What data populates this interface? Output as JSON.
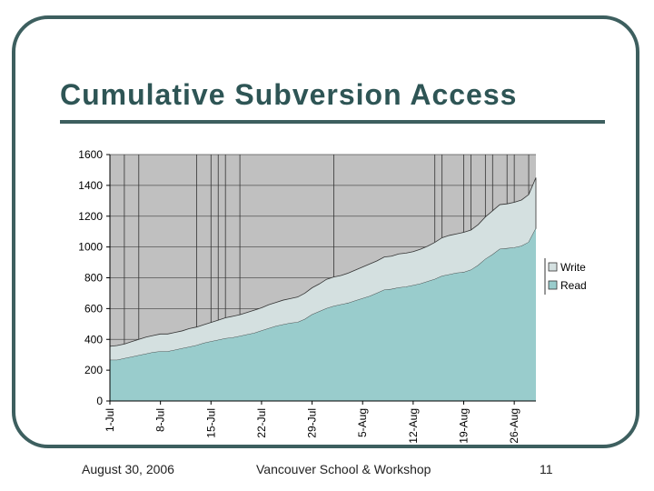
{
  "slide": {
    "title": "Cumulative Subversion Access",
    "footer_date": "August 30, 2006",
    "footer_venue": "Vancouver School & Workshop",
    "page_number": "11"
  },
  "colors": {
    "frame": "#3d5f5f",
    "title": "#2e5555",
    "plot_background": "#c0c0c0",
    "read_fill": "#99cccc",
    "write_fill": "#d4e0e0"
  },
  "chart_data": {
    "type": "area",
    "stacked": true,
    "title": "",
    "xlabel": "",
    "ylabel": "",
    "ylim": [
      0,
      1600
    ],
    "yticks": [
      0,
      200,
      400,
      600,
      800,
      1000,
      1200,
      1400,
      1600
    ],
    "x_tick_labels": [
      "1-Jul",
      "8-Jul",
      "15-Jul",
      "22-Jul",
      "29-Jul",
      "5-Aug",
      "12-Aug",
      "19-Aug",
      "26-Aug"
    ],
    "x": [
      "1-Jul",
      "2-Jul",
      "3-Jul",
      "4-Jul",
      "5-Jul",
      "6-Jul",
      "7-Jul",
      "8-Jul",
      "9-Jul",
      "10-Jul",
      "11-Jul",
      "12-Jul",
      "13-Jul",
      "14-Jul",
      "15-Jul",
      "16-Jul",
      "17-Jul",
      "18-Jul",
      "19-Jul",
      "20-Jul",
      "21-Jul",
      "22-Jul",
      "23-Jul",
      "24-Jul",
      "25-Jul",
      "26-Jul",
      "27-Jul",
      "28-Jul",
      "29-Jul",
      "30-Jul",
      "31-Jul",
      "1-Aug",
      "2-Aug",
      "3-Aug",
      "4-Aug",
      "5-Aug",
      "6-Aug",
      "7-Aug",
      "8-Aug",
      "9-Aug",
      "10-Aug",
      "11-Aug",
      "12-Aug",
      "13-Aug",
      "14-Aug",
      "15-Aug",
      "16-Aug",
      "17-Aug",
      "18-Aug",
      "19-Aug",
      "20-Aug",
      "21-Aug",
      "22-Aug",
      "23-Aug",
      "24-Aug",
      "25-Aug",
      "26-Aug",
      "27-Aug",
      "28-Aug",
      "29-Aug"
    ],
    "series": [
      {
        "name": "Read",
        "values": [
          265,
          265,
          275,
          285,
          295,
          305,
          315,
          320,
          320,
          330,
          340,
          350,
          360,
          375,
          385,
          395,
          405,
          410,
          420,
          430,
          440,
          455,
          470,
          485,
          495,
          505,
          510,
          530,
          560,
          580,
          600,
          615,
          625,
          635,
          650,
          665,
          680,
          700,
          720,
          725,
          735,
          740,
          750,
          760,
          775,
          790,
          810,
          820,
          830,
          835,
          850,
          880,
          920,
          950,
          985,
          990,
          995,
          1005,
          1030,
          1120
        ]
      },
      {
        "name": "Write",
        "values": [
          90,
          95,
          95,
          100,
          105,
          110,
          110,
          115,
          115,
          115,
          115,
          120,
          120,
          120,
          125,
          130,
          135,
          140,
          140,
          145,
          150,
          150,
          155,
          155,
          160,
          160,
          165,
          170,
          175,
          180,
          190,
          190,
          190,
          195,
          200,
          205,
          210,
          210,
          215,
          215,
          220,
          220,
          220,
          225,
          230,
          240,
          250,
          255,
          255,
          260,
          260,
          265,
          275,
          285,
          290,
          290,
          295,
          300,
          310,
          330
        ]
      }
    ],
    "legend": {
      "entries": [
        "Write",
        "Read"
      ],
      "position": "right"
    }
  }
}
